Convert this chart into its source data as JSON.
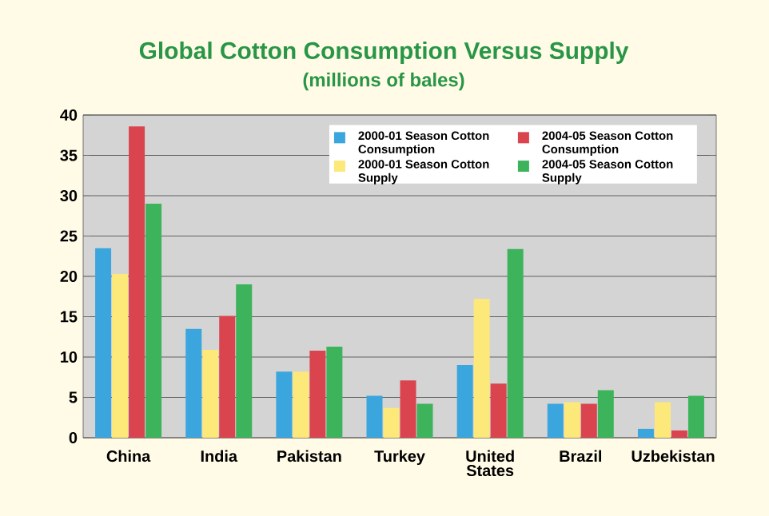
{
  "chart_data": {
    "type": "bar",
    "title": "Global Cotton Consumption Versus Supply",
    "subtitle": "(millions of bales)",
    "categories": [
      "China",
      "India",
      "Pakistan",
      "Turkey",
      "United States",
      "Brazil",
      "Uzbekistan"
    ],
    "series": [
      {
        "name": "2000-01 Season Cotton Consumption",
        "color": "#3aa6dd",
        "values": [
          23.5,
          13.5,
          8.2,
          5.2,
          9.0,
          4.2,
          1.1
        ]
      },
      {
        "name": "2000-01 Season Cotton Supply",
        "color": "#fde87a",
        "values": [
          20.3,
          10.9,
          8.2,
          3.7,
          17.2,
          4.4,
          4.4
        ]
      },
      {
        "name": "2004-05 Season Cotton Consumption",
        "color": "#d9444f",
        "values": [
          38.6,
          15.1,
          10.8,
          7.1,
          6.7,
          4.2,
          0.9
        ]
      },
      {
        "name": "2004-05 Season Cotton Supply",
        "color": "#3db35c",
        "values": [
          29.0,
          19.0,
          11.3,
          4.2,
          23.4,
          5.9,
          5.2
        ]
      }
    ],
    "ylim": [
      0,
      40
    ],
    "yticks": [
      0,
      5,
      10,
      15,
      20,
      25,
      30,
      35,
      40
    ],
    "grid": "y",
    "legend": "top right"
  }
}
